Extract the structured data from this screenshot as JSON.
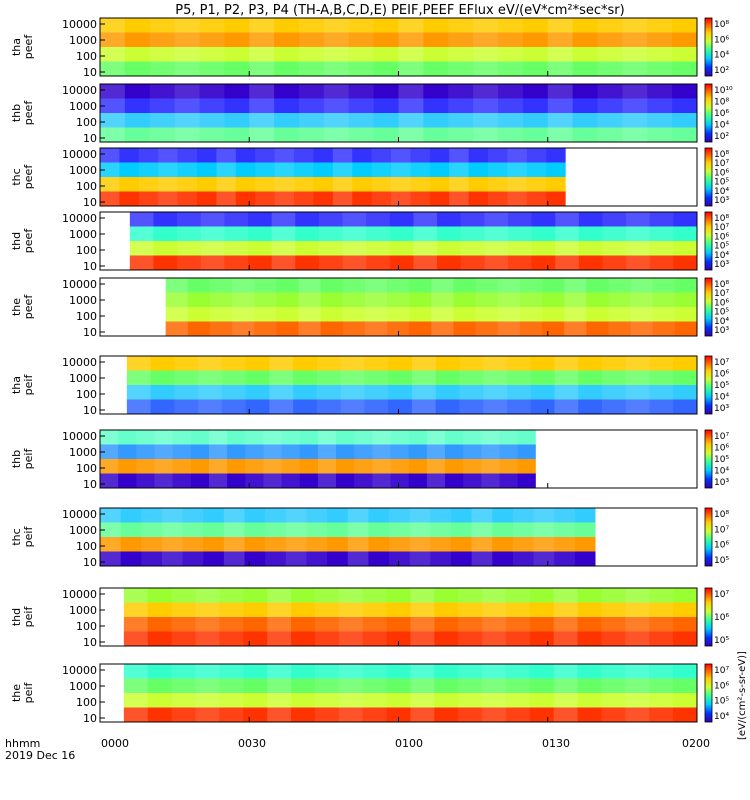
{
  "figure": {
    "title": "P5, P1, P2, P3, P4 (TH-A,B,C,D,E) PEIF,PEEF EFlux eV/(eV*cm²*sec*sr)",
    "time_axis_label_1": "hhmm",
    "time_axis_label_2": "2019 Dec 16",
    "time_ticks": [
      "0000",
      "0030",
      "0100",
      "0130",
      "0200"
    ],
    "colorbar_label": "[eV/(cm²-s-sr-eV)]"
  },
  "chart_data": [
    {
      "type": "heatmap",
      "ylabel": [
        "tha",
        "peef"
      ],
      "yticks": [
        "10000",
        "1000",
        "100",
        "10"
      ],
      "colorbar_ticks": [
        "10⁸",
        "10⁶",
        "10⁴",
        "10²"
      ],
      "data_start_fraction": 0.0,
      "data_end_fraction": 1.0,
      "colors": [
        "#ffcc00",
        "#ff9900",
        "#ccff33",
        "#66ff66"
      ]
    },
    {
      "type": "heatmap",
      "ylabel": [
        "thb",
        "peef"
      ],
      "yticks": [
        "10000",
        "1000",
        "100",
        "10"
      ],
      "colorbar_ticks": [
        "10¹⁰",
        "10⁸",
        "10⁶",
        "10⁴",
        "10²"
      ],
      "data_start_fraction": 0.0,
      "data_end_fraction": 1.0,
      "colors": [
        "#3300cc",
        "#3333ff",
        "#33ccff",
        "#66ff99"
      ]
    },
    {
      "type": "heatmap",
      "ylabel": [
        "thc",
        "peef"
      ],
      "yticks": [
        "10000",
        "1000",
        "100",
        "10"
      ],
      "colorbar_ticks": [
        "10⁸",
        "10⁷",
        "10⁶",
        "10⁵",
        "10⁴",
        "10³"
      ],
      "data_start_fraction": 0.0,
      "data_end_fraction": 0.78,
      "colors": [
        "#3333ff",
        "#00ccff",
        "#ffcc00",
        "#ff3300"
      ]
    },
    {
      "type": "heatmap",
      "ylabel": [
        "thd",
        "peef"
      ],
      "yticks": [
        "10000",
        "1000",
        "100",
        "10"
      ],
      "colorbar_ticks": [
        "10⁸",
        "10⁷",
        "10⁶",
        "10⁵",
        "10⁴",
        "10³"
      ],
      "data_start_fraction": 0.05,
      "data_end_fraction": 1.0,
      "colors": [
        "#3333ff",
        "#33ffcc",
        "#ccff33",
        "#ff3300"
      ]
    },
    {
      "type": "heatmap",
      "ylabel": [
        "the",
        "peef"
      ],
      "yticks": [
        "10000",
        "1000",
        "100",
        "10"
      ],
      "colorbar_ticks": [
        "10⁸",
        "10⁷",
        "10⁶",
        "10⁵",
        "10⁴",
        "10³"
      ],
      "data_start_fraction": 0.11,
      "data_end_fraction": 1.0,
      "colors": [
        "#66ff66",
        "#99ff33",
        "#ccff33",
        "#ff6600"
      ]
    },
    {
      "type": "heatmap",
      "ylabel": [
        "tha",
        "peif"
      ],
      "yticks": [
        "10000",
        "1000",
        "100",
        "10"
      ],
      "colorbar_ticks": [
        "10⁷",
        "10⁶",
        "10⁵",
        "10⁴",
        "10³"
      ],
      "data_start_fraction": 0.045,
      "data_end_fraction": 1.0,
      "colors": [
        "#ffcc00",
        "#66ff66",
        "#33ccff",
        "#3366ff"
      ]
    },
    {
      "type": "heatmap",
      "ylabel": [
        "thb",
        "peif"
      ],
      "yticks": [
        "10000",
        "1000",
        "100",
        "10"
      ],
      "colorbar_ticks": [
        "10⁷",
        "10⁶",
        "10⁵",
        "10⁴",
        "10³"
      ],
      "data_start_fraction": 0.0,
      "data_end_fraction": 0.73,
      "colors": [
        "#66ffcc",
        "#3399ff",
        "#ff9900",
        "#3300cc"
      ]
    },
    {
      "type": "heatmap",
      "ylabel": [
        "thc",
        "peif"
      ],
      "yticks": [
        "10000",
        "1000",
        "100",
        "10"
      ],
      "colorbar_ticks": [
        "10⁸",
        "10⁷",
        "10⁶",
        "10⁵"
      ],
      "data_start_fraction": 0.0,
      "data_end_fraction": 0.83,
      "colors": [
        "#33ccff",
        "#66ff99",
        "#ff9900",
        "#3300cc"
      ]
    },
    {
      "type": "heatmap",
      "ylabel": [
        "thd",
        "peif"
      ],
      "yticks": [
        "10000",
        "1000",
        "100",
        "10"
      ],
      "colorbar_ticks": [
        "10⁷",
        "10⁶",
        "10⁵"
      ],
      "data_start_fraction": 0.04,
      "data_end_fraction": 1.0,
      "colors": [
        "#99ff33",
        "#ffcc00",
        "#ff6600",
        "#ff3300"
      ]
    },
    {
      "type": "heatmap",
      "ylabel": [
        "the",
        "peif"
      ],
      "yticks": [
        "10000",
        "1000",
        "100",
        "10"
      ],
      "colorbar_ticks": [
        "10⁷",
        "10⁶",
        "10⁵",
        "10⁴"
      ],
      "data_start_fraction": 0.04,
      "data_end_fraction": 1.0,
      "colors": [
        "#33ffcc",
        "#66ff66",
        "#ccff33",
        "#ff3300"
      ]
    }
  ]
}
